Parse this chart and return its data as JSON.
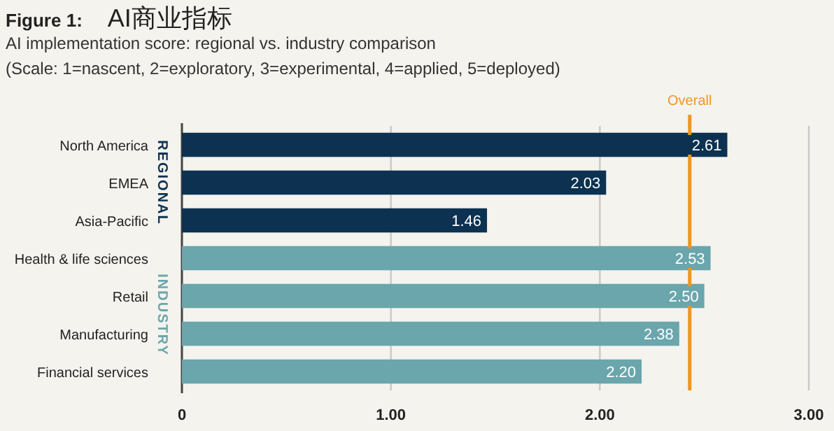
{
  "chart_data": {
    "type": "bar",
    "orientation": "horizontal",
    "title": "**Figure 1:** AI商业指标",
    "subtitle": "AI implementation score: regional vs. industry comparison",
    "annotations": [
      "(Scale: 1=nascent, 2=exploratory, 3=experimental, 4=applied, 5=deployed)"
    ],
    "categories": [
      "North America",
      "EMEA",
      "Asia-Pacific",
      "Health & life sciences",
      "Retail",
      "Manufacturing",
      "Financial services"
    ],
    "series": [
      {
        "name": "REGIONAL",
        "color": "#0d3251",
        "values": [
          2.61,
          2.03,
          1.46,
          null,
          null,
          null,
          null
        ],
        "value_labels": [
          "2.61",
          "2.03",
          "1.46",
          null,
          null,
          null,
          null
        ]
      },
      {
        "name": "INDUSTRY",
        "color": "#6aa6ac",
        "values": [
          null,
          null,
          null,
          2.53,
          2.5,
          2.38,
          2.2
        ],
        "value_labels": [
          null,
          null,
          null,
          "2.53",
          "2.50",
          "2.38",
          "2.20"
        ]
      }
    ],
    "xlim": [
      0,
      3
    ],
    "xticks": [
      0,
      {
        "value": 1,
        "label": "1.00"
      },
      {
        "value": 2,
        "label": "2.00"
      },
      {
        "value": 3,
        "label": "3.00"
      }
    ],
    "grid": "x",
    "ref_lines": [
      {
        "axis": "x",
        "value": 2.43,
        "label": "Overall",
        "color": "#f0961e"
      }
    ]
  }
}
